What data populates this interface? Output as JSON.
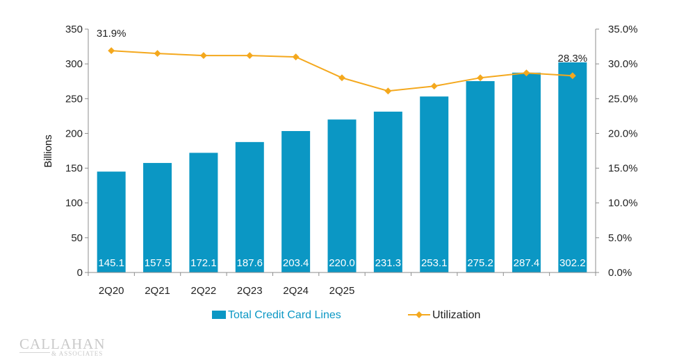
{
  "chart_data": {
    "type": "bar",
    "categories": [
      "2Q20",
      "2Q21",
      "2Q22",
      "2Q23",
      "2Q24",
      "2Q25",
      "",
      "",
      "",
      "",
      ""
    ],
    "series": [
      {
        "name": "Total Credit Card Lines",
        "type": "bar",
        "axis": "left",
        "color": "#0b97c4",
        "values": [
          145.1,
          157.5,
          172.1,
          187.6,
          203.4,
          220.0,
          231.3,
          253.1,
          275.2,
          287.4,
          302.2
        ],
        "value_labels": [
          "145.1",
          "157.5",
          "172.1",
          "187.6",
          "203.4",
          "220.0",
          "231.3",
          "253.1",
          "275.2",
          "287.4",
          "302.2"
        ]
      },
      {
        "name": "Utilization",
        "type": "line",
        "axis": "right",
        "color": "#f4a81d",
        "values": [
          31.9,
          31.5,
          31.2,
          31.2,
          31.0,
          28.0,
          26.1,
          26.8,
          28.0,
          28.7,
          28.3
        ],
        "point_labels": [
          {
            "index": 0,
            "text": "31.9%"
          },
          {
            "index": 10,
            "text": "28.3%"
          }
        ]
      }
    ],
    "ylabel": "Billions",
    "ylim": [
      0,
      350
    ],
    "y_ticks": [
      "0",
      "50",
      "100",
      "150",
      "200",
      "250",
      "300",
      "350"
    ],
    "y2lim": [
      0,
      35
    ],
    "y2_ticks": [
      "0.0%",
      "5.0%",
      "10.0%",
      "15.0%",
      "20.0%",
      "25.0%",
      "30.0%",
      "35.0%"
    ],
    "grid": false,
    "legend_position": "bottom",
    "legend": [
      "Total Credit Card Lines",
      "Utilization"
    ]
  },
  "branding": {
    "logo_text": "CALLAHAN",
    "logo_subtext": "& ASSOCIATES"
  }
}
